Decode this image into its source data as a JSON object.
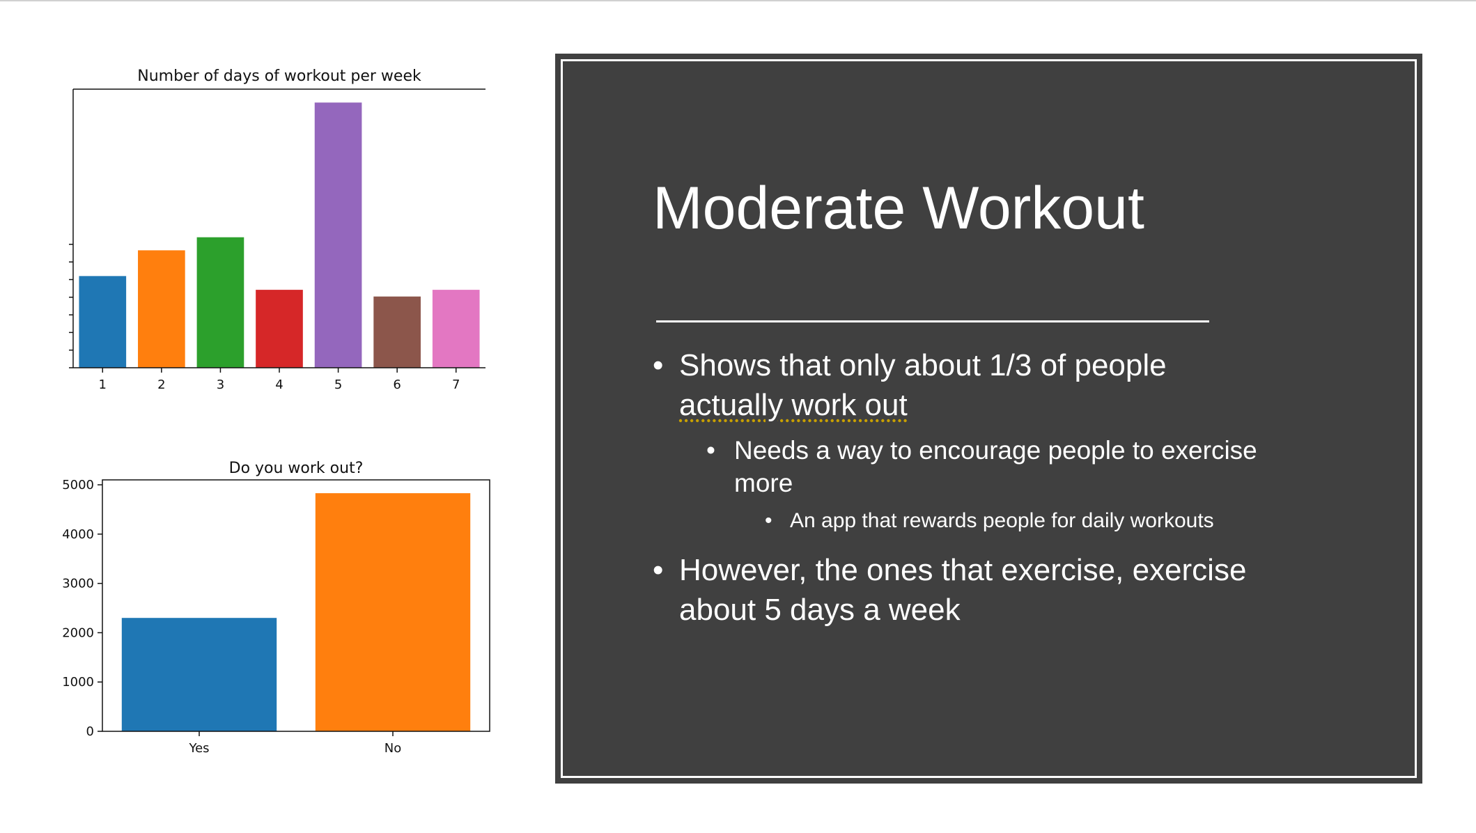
{
  "chart_data": [
    {
      "type": "bar",
      "title": "Number of days of workout per week",
      "categories": [
        "1",
        "2",
        "3",
        "4",
        "5",
        "6",
        "7"
      ],
      "values": [
        260,
        333,
        370,
        221,
        752,
        202,
        221
      ],
      "ylim": [
        0,
        790
      ],
      "colors": [
        "#1f77b4",
        "#ff7f0e",
        "#2ca02c",
        "#d62728",
        "#9467bd",
        "#8c564b",
        "#e377c2"
      ],
      "yticks_shown": false
    },
    {
      "type": "bar",
      "title": "Do you work out?",
      "categories": [
        "Yes",
        "No"
      ],
      "values": [
        2300,
        4830
      ],
      "ylim": [
        0,
        5100
      ],
      "yticks": [
        "0",
        "1000",
        "2000",
        "3000",
        "4000",
        "5000"
      ],
      "colors": [
        "#1f77b4",
        "#ff7f0e"
      ]
    }
  ],
  "slide": {
    "title": "Moderate Workout",
    "bullet1_line1": "Shows that only about 1/3 of people",
    "bullet1_line2": "actually work out",
    "sub1_line1": "Needs a way to encourage people to exercise",
    "sub1_line2": "more",
    "subsub1": "An app that rewards people for daily workouts",
    "bullet2_line1": "However, the ones that exercise, exercise",
    "bullet2_line2": "about 5 days a week",
    "bullet_glyph": "•",
    "panel_color": "#404040",
    "text_color": "#ffffff"
  }
}
